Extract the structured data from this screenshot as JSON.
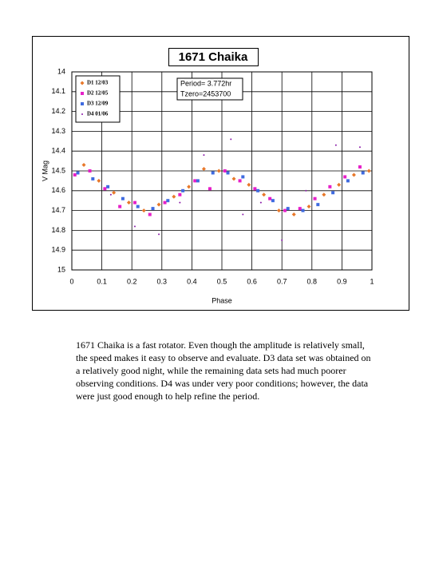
{
  "chart_data": {
    "type": "scatter",
    "title": "1671 Chaika",
    "xlabel": "Phase",
    "ylabel": "V Mag",
    "annotations": [
      "Period= 3.772hr",
      "Tzero=2453700"
    ],
    "xlim": [
      0,
      1
    ],
    "xticks": [
      0,
      0.1,
      0.2,
      0.3,
      0.4,
      0.5,
      0.6,
      0.7,
      0.8,
      0.9,
      1
    ],
    "ylim": [
      15,
      14
    ],
    "yticks": [
      14,
      14.1,
      14.2,
      14.3,
      14.4,
      14.5,
      14.6,
      14.7,
      14.8,
      14.9,
      15
    ],
    "grid": true,
    "legend": "upper left",
    "series": [
      {
        "name": "D1 12/03",
        "color": "#e8782a",
        "marker": "diamond",
        "x": [
          0.04,
          0.09,
          0.14,
          0.19,
          0.24,
          0.29,
          0.34,
          0.39,
          0.44,
          0.49,
          0.54,
          0.59,
          0.64,
          0.69,
          0.74,
          0.79,
          0.84,
          0.89,
          0.94,
          0.99
        ],
        "values": [
          14.47,
          14.55,
          14.61,
          14.66,
          14.7,
          14.67,
          14.63,
          14.58,
          14.49,
          14.5,
          14.54,
          14.57,
          14.62,
          14.7,
          14.72,
          14.68,
          14.62,
          14.57,
          14.52,
          14.5
        ]
      },
      {
        "name": "D2 12/05",
        "color": "#e620c8",
        "marker": "square",
        "x": [
          0.01,
          0.06,
          0.11,
          0.16,
          0.21,
          0.26,
          0.31,
          0.36,
          0.41,
          0.46,
          0.51,
          0.56,
          0.61,
          0.66,
          0.71,
          0.76,
          0.81,
          0.86,
          0.91,
          0.96
        ],
        "values": [
          14.52,
          14.5,
          14.59,
          14.68,
          14.66,
          14.72,
          14.66,
          14.62,
          14.55,
          14.59,
          14.5,
          14.55,
          14.59,
          14.64,
          14.7,
          14.69,
          14.64,
          14.58,
          14.53,
          14.48
        ]
      },
      {
        "name": "D3 12/09",
        "color": "#3f6be0",
        "marker": "square",
        "x": [
          0.02,
          0.07,
          0.12,
          0.17,
          0.22,
          0.27,
          0.32,
          0.37,
          0.42,
          0.47,
          0.52,
          0.57,
          0.62,
          0.67,
          0.72,
          0.77,
          0.82,
          0.87,
          0.92,
          0.97
        ],
        "values": [
          14.51,
          14.54,
          14.58,
          14.64,
          14.68,
          14.69,
          14.65,
          14.6,
          14.55,
          14.51,
          14.51,
          14.53,
          14.6,
          14.65,
          14.69,
          14.7,
          14.67,
          14.61,
          14.55,
          14.51
        ]
      },
      {
        "name": "D4 01/06",
        "color": "#8a1aa8",
        "marker": "dot",
        "x": [
          0.13,
          0.21,
          0.29,
          0.36,
          0.44,
          0.53,
          0.57,
          0.63,
          0.7,
          0.78,
          0.88,
          0.96
        ],
        "values": [
          14.62,
          14.78,
          14.82,
          14.66,
          14.42,
          14.34,
          14.72,
          14.66,
          14.85,
          14.6,
          14.37,
          14.38
        ]
      }
    ]
  },
  "body_text": "1671 Chaika is a fast rotator.  Even though the amplitude is relatively small, the speed makes it easy to observe and evaluate.  D3 data set was obtained on a relatively good night, while the remaining data sets had much poorer observing conditions.  D4 was under very poor conditions; however, the data were just good enough to help refine the period."
}
